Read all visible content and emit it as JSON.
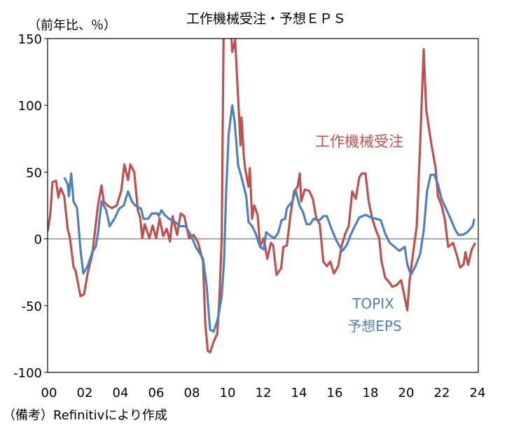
{
  "chart_data": {
    "type": "line",
    "title": "工作機械受注・予想ＥＰＳ",
    "ylabel": "（前年比、％）",
    "xlabel": "",
    "note": "（備考）Refinitivにより作成",
    "ylim": [
      -100,
      150
    ],
    "xlim": [
      2000,
      2024.5
    ],
    "yticks": [
      "150",
      "100",
      "50",
      "0",
      "-50",
      "-100"
    ],
    "ytick_values": [
      150,
      100,
      50,
      0,
      -50,
      -100
    ],
    "xticks": [
      "00",
      "02",
      "04",
      "06",
      "08",
      "10",
      "12",
      "14",
      "16",
      "18",
      "20",
      "22",
      "24"
    ],
    "xtick_values": [
      2000,
      2002,
      2004,
      2006,
      2008,
      2010,
      2012,
      2014,
      2016,
      2018,
      2020,
      2022,
      2024
    ],
    "grid": false,
    "series": [
      {
        "name": "工作機械受注",
        "color": "#C0504D",
        "points": [
          [
            0.0,
            5.8
          ],
          [
            0.15,
            18
          ],
          [
            0.27,
            42.5
          ],
          [
            0.47,
            43.6
          ],
          [
            0.6,
            31
          ],
          [
            0.73,
            38
          ],
          [
            0.93,
            32
          ],
          [
            1.12,
            7.5
          ],
          [
            1.25,
            0.5
          ],
          [
            1.45,
            -21
          ],
          [
            1.57,
            -24
          ],
          [
            1.84,
            -43
          ],
          [
            2.04,
            -41.5
          ],
          [
            2.24,
            -26
          ],
          [
            2.5,
            -11.5
          ],
          [
            2.82,
            25
          ],
          [
            3.02,
            40
          ],
          [
            3.14,
            28
          ],
          [
            3.35,
            25
          ],
          [
            3.6,
            23
          ],
          [
            3.87,
            25
          ],
          [
            4.12,
            36
          ],
          [
            4.3,
            55.7
          ],
          [
            4.5,
            44
          ],
          [
            4.63,
            55.7
          ],
          [
            4.85,
            50
          ],
          [
            5.05,
            21.5
          ],
          [
            5.18,
            16
          ],
          [
            5.3,
            0.5
          ],
          [
            5.44,
            11
          ],
          [
            5.7,
            0.5
          ],
          [
            5.88,
            10
          ],
          [
            6.08,
            0.5
          ],
          [
            6.27,
            15.4
          ],
          [
            6.47,
            2
          ],
          [
            6.67,
            7.5
          ],
          [
            6.85,
            -2
          ],
          [
            7.0,
            17
          ],
          [
            7.25,
            3
          ],
          [
            7.45,
            19
          ],
          [
            7.65,
            17
          ],
          [
            7.92,
            0.5
          ],
          [
            8.18,
            3
          ],
          [
            8.43,
            -3
          ],
          [
            8.7,
            -17
          ],
          [
            8.83,
            -64
          ],
          [
            8.97,
            -84
          ],
          [
            9.1,
            -85
          ],
          [
            9.3,
            -77
          ],
          [
            9.5,
            -71
          ],
          [
            9.62,
            -45
          ],
          [
            9.75,
            0.5
          ],
          [
            9.88,
            190
          ],
          [
            10.05,
            210
          ],
          [
            10.2,
            170
          ],
          [
            10.34,
            140
          ],
          [
            10.5,
            149
          ],
          [
            10.67,
            105
          ],
          [
            10.8,
            70
          ],
          [
            10.86,
            91
          ],
          [
            10.98,
            63
          ],
          [
            11.06,
            53
          ],
          [
            11.25,
            39
          ],
          [
            11.32,
            53
          ],
          [
            11.45,
            15
          ],
          [
            11.57,
            25
          ],
          [
            11.76,
            18
          ],
          [
            11.9,
            -6
          ],
          [
            12.1,
            0.5
          ],
          [
            12.3,
            -15
          ],
          [
            12.5,
            -3
          ],
          [
            12.63,
            -5
          ],
          [
            12.82,
            -27
          ],
          [
            13.08,
            -22
          ],
          [
            13.2,
            -6
          ],
          [
            13.4,
            -5
          ],
          [
            13.6,
            18
          ],
          [
            13.8,
            35.5
          ],
          [
            14.0,
            39
          ],
          [
            14.12,
            49
          ],
          [
            14.2,
            28
          ],
          [
            14.4,
            37
          ],
          [
            14.65,
            36
          ],
          [
            14.85,
            30
          ],
          [
            15.05,
            15
          ],
          [
            15.24,
            11
          ],
          [
            15.44,
            -17
          ],
          [
            15.64,
            -20.5
          ],
          [
            15.83,
            -17
          ],
          [
            16.03,
            -26
          ],
          [
            16.27,
            -20.5
          ],
          [
            16.47,
            -5
          ],
          [
            16.67,
            4
          ],
          [
            16.86,
            9.5
          ],
          [
            17.06,
            35.5
          ],
          [
            17.26,
            30
          ],
          [
            17.45,
            46
          ],
          [
            17.6,
            49
          ],
          [
            17.8,
            49
          ],
          [
            17.98,
            28
          ],
          [
            18.18,
            15
          ],
          [
            18.4,
            6
          ],
          [
            18.57,
            0.5
          ],
          [
            18.7,
            -17
          ],
          [
            18.9,
            -29
          ],
          [
            19.16,
            -33
          ],
          [
            19.3,
            -36
          ],
          [
            19.55,
            -34.5
          ],
          [
            19.8,
            -31
          ],
          [
            20.14,
            -53.5
          ],
          [
            20.27,
            -31
          ],
          [
            20.47,
            -10
          ],
          [
            20.67,
            9.5
          ],
          [
            20.86,
            70
          ],
          [
            21.06,
            142
          ],
          [
            21.2,
            97
          ],
          [
            21.33,
            85
          ],
          [
            21.5,
            70
          ],
          [
            21.73,
            53
          ],
          [
            21.86,
            32
          ],
          [
            22.06,
            25
          ],
          [
            22.24,
            15
          ],
          [
            22.43,
            -6
          ],
          [
            22.7,
            -3
          ],
          [
            22.9,
            -11.5
          ],
          [
            23.1,
            -21.5
          ],
          [
            23.3,
            -19
          ],
          [
            23.4,
            -10
          ],
          [
            23.55,
            -19.5
          ],
          [
            23.75,
            -8
          ],
          [
            23.95,
            -3
          ]
        ]
      },
      {
        "name": "TOPIX 予想EPS",
        "label_lines": [
          "TOPIX",
          "予想EPS"
        ],
        "color": "#4F81BD",
        "points": [
          [
            0.93,
            46
          ],
          [
            1.12,
            41
          ],
          [
            1.19,
            32
          ],
          [
            1.32,
            49
          ],
          [
            1.45,
            28
          ],
          [
            1.65,
            23
          ],
          [
            1.84,
            -8
          ],
          [
            2.0,
            -26
          ],
          [
            2.24,
            -20.5
          ],
          [
            2.5,
            -10
          ],
          [
            2.69,
            -6
          ],
          [
            2.82,
            4
          ],
          [
            3.02,
            28
          ],
          [
            3.28,
            21.5
          ],
          [
            3.47,
            9.5
          ],
          [
            3.74,
            15
          ],
          [
            4.0,
            22.5
          ],
          [
            4.26,
            25
          ],
          [
            4.5,
            35.5
          ],
          [
            4.72,
            28
          ],
          [
            4.9,
            25
          ],
          [
            5.24,
            22.5
          ],
          [
            5.37,
            15
          ],
          [
            5.63,
            15
          ],
          [
            5.83,
            19
          ],
          [
            6.16,
            19
          ],
          [
            6.22,
            17
          ],
          [
            6.38,
            21.5
          ],
          [
            6.55,
            18
          ],
          [
            6.8,
            15
          ],
          [
            7.14,
            12.6
          ],
          [
            7.4,
            9.5
          ],
          [
            7.73,
            9.5
          ],
          [
            8.05,
            2
          ],
          [
            8.3,
            -6
          ],
          [
            8.7,
            -15
          ],
          [
            8.9,
            -34.5
          ],
          [
            9.1,
            -68
          ],
          [
            9.3,
            -69.5
          ],
          [
            9.55,
            -59
          ],
          [
            9.75,
            -43
          ],
          [
            9.88,
            -17
          ],
          [
            10.0,
            36
          ],
          [
            10.14,
            79
          ],
          [
            10.34,
            100
          ],
          [
            10.47,
            88
          ],
          [
            10.67,
            55
          ],
          [
            10.86,
            46
          ],
          [
            11.12,
            32
          ],
          [
            11.25,
            12.6
          ],
          [
            11.45,
            9.5
          ],
          [
            11.65,
            4
          ],
          [
            11.9,
            -6
          ],
          [
            12.1,
            -8
          ],
          [
            12.24,
            5
          ],
          [
            12.5,
            2
          ],
          [
            12.7,
            0.5
          ],
          [
            12.9,
            4
          ],
          [
            13.1,
            14
          ],
          [
            13.3,
            15
          ],
          [
            13.4,
            23
          ],
          [
            13.7,
            28
          ],
          [
            13.9,
            36
          ],
          [
            14.1,
            25
          ],
          [
            14.3,
            20
          ],
          [
            14.5,
            11
          ],
          [
            14.7,
            11
          ],
          [
            14.9,
            15
          ],
          [
            15.24,
            14
          ],
          [
            15.44,
            17
          ],
          [
            15.64,
            17
          ],
          [
            15.9,
            7.5
          ],
          [
            16.16,
            -1
          ],
          [
            16.5,
            -9
          ],
          [
            16.74,
            -5
          ],
          [
            16.94,
            2
          ],
          [
            17.2,
            9.5
          ],
          [
            17.45,
            16
          ],
          [
            17.8,
            18
          ],
          [
            18.1,
            16
          ],
          [
            18.4,
            15
          ],
          [
            18.65,
            14
          ],
          [
            18.9,
            4
          ],
          [
            19.16,
            -3
          ],
          [
            19.43,
            -6
          ],
          [
            19.7,
            -9
          ],
          [
            20.0,
            -6
          ],
          [
            20.14,
            -19
          ],
          [
            20.34,
            -27
          ],
          [
            20.6,
            -20.5
          ],
          [
            20.86,
            -11.5
          ],
          [
            21.06,
            6
          ],
          [
            21.25,
            36
          ],
          [
            21.45,
            48
          ],
          [
            21.65,
            48
          ],
          [
            21.86,
            41
          ],
          [
            22.06,
            30
          ],
          [
            22.3,
            23
          ],
          [
            22.57,
            15
          ],
          [
            22.8,
            7.5
          ],
          [
            23.0,
            3
          ],
          [
            23.25,
            3
          ],
          [
            23.5,
            5
          ],
          [
            23.8,
            9.5
          ],
          [
            23.9,
            15
          ]
        ]
      }
    ]
  }
}
